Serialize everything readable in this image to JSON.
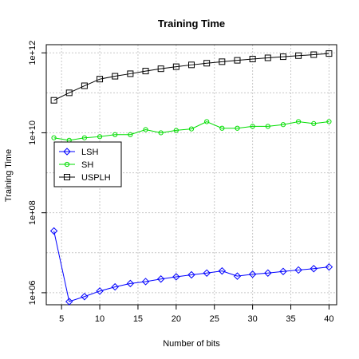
{
  "chart_data": {
    "type": "line",
    "title": "Training Time",
    "xlabel": "Number of bits",
    "ylabel": "Training Time",
    "x": [
      4,
      6,
      8,
      10,
      12,
      14,
      16,
      18,
      20,
      22,
      24,
      26,
      28,
      30,
      32,
      34,
      36,
      38,
      40
    ],
    "xlim": [
      3,
      41
    ],
    "ylim": [
      500000.0,
      1600000000000.0
    ],
    "log_y": true,
    "grid": true,
    "legend_position": "left",
    "x_ticks": [
      5,
      10,
      15,
      20,
      25,
      30,
      35,
      40
    ],
    "x_tick_labels": [
      "5",
      "10",
      "15",
      "20",
      "25",
      "30",
      "35",
      "40"
    ],
    "y_ticks": [
      1000000.0,
      100000000.0,
      10000000000.0,
      1000000000000.0
    ],
    "y_tick_labels": [
      "1e+06",
      "1e+08",
      "1e+10",
      "1e+12"
    ],
    "series": [
      {
        "name": "LSH",
        "color": "#0000ff",
        "marker": "diamond",
        "values": [
          35000000.0,
          600000.0,
          800000.0,
          1100000.0,
          1400000.0,
          1700000.0,
          1900000.0,
          2200000.0,
          2500000.0,
          2800000.0,
          3100000.0,
          3500000.0,
          2600000.0,
          2900000.0,
          3100000.0,
          3400000.0,
          3700000.0,
          4000000.0,
          4400000.0
        ]
      },
      {
        "name": "SH",
        "color": "#00dd00",
        "marker": "circle",
        "values": [
          7500000000.0,
          6500000000.0,
          7500000000.0,
          8000000000.0,
          9000000000.0,
          9000000000.0,
          12000000000.0,
          10000000000.0,
          11500000000.0,
          12500000000.0,
          19000000000.0,
          13000000000.0,
          13000000000.0,
          14500000000.0,
          14500000000.0,
          16000000000.0,
          19000000000.0,
          17000000000.0,
          19000000000.0
        ]
      },
      {
        "name": "USPLH",
        "color": "#000000",
        "marker": "square",
        "values": [
          65000000000.0,
          100000000000.0,
          150000000000.0,
          220000000000.0,
          260000000000.0,
          300000000000.0,
          350000000000.0,
          400000000000.0,
          450000000000.0,
          500000000000.0,
          550000000000.0,
          600000000000.0,
          650000000000.0,
          700000000000.0,
          750000000000.0,
          800000000000.0,
          850000000000.0,
          900000000000.0,
          960000000000.0
        ]
      }
    ]
  }
}
